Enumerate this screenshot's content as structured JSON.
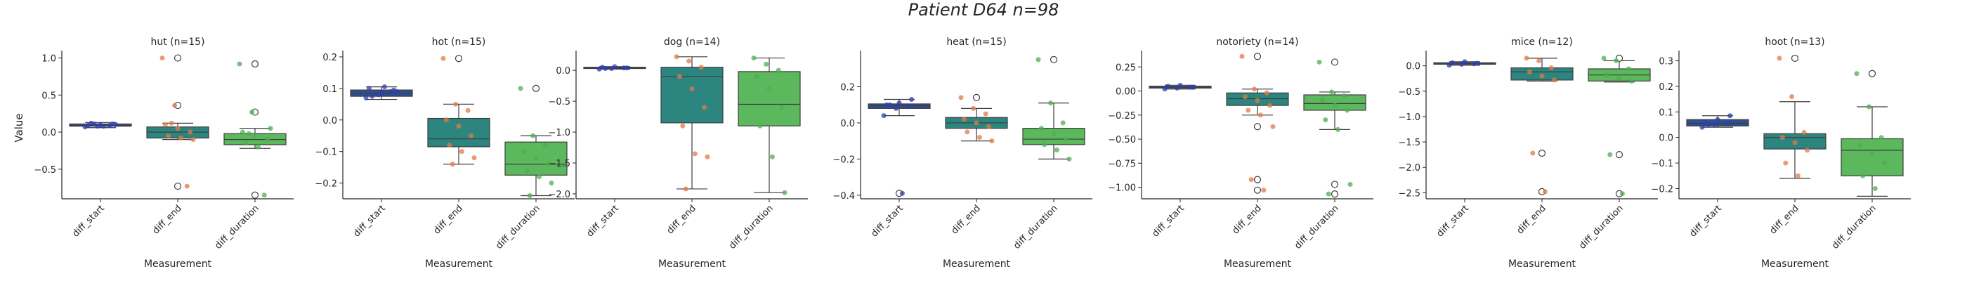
{
  "figure": {
    "title": "Patient D64 n=98",
    "ylabel": "Value",
    "colors": {
      "diff_start": "#2f4f8f",
      "diff_end": "#2c857f",
      "diff_duration": "#5cb85c",
      "dots_start": "#2d3fb0",
      "dots_end": "#e07b45",
      "dots_duration": "#4caf50"
    }
  },
  "chart_data": [
    {
      "type": "box",
      "title": "hut (n=15)",
      "xlabel": "Measurement",
      "categories": [
        "diff_start",
        "diff_end",
        "diff_duration"
      ],
      "ylim": [
        -0.9,
        1.1
      ],
      "yticks": [
        -0.5,
        0.0,
        0.5,
        1.0
      ],
      "ytick_labels": [
        "−0.5",
        "0.0",
        "0.5",
        "1.0"
      ],
      "boxes": [
        {
          "q1": 0.08,
          "median": 0.09,
          "q3": 0.11,
          "whislo": 0.06,
          "whishi": 0.13,
          "fliers": []
        },
        {
          "q1": -0.08,
          "median": 0.0,
          "q3": 0.07,
          "whislo": -0.1,
          "whishi": 0.12,
          "fliers": [
            1.0,
            0.36,
            -0.73
          ]
        },
        {
          "q1": -0.17,
          "median": -0.1,
          "q3": -0.02,
          "whislo": -0.22,
          "whishi": 0.05,
          "fliers": [
            0.92,
            0.27,
            -0.85
          ]
        }
      ],
      "points": [
        [
          0.07,
          0.08,
          0.09,
          0.09,
          0.1,
          0.11,
          0.12,
          0.08,
          0.1,
          0.11
        ],
        [
          1.0,
          0.36,
          -0.73,
          0.1,
          0.05,
          0.0,
          -0.05,
          -0.08,
          -0.1,
          0.12
        ],
        [
          0.92,
          0.27,
          -0.85,
          0.0,
          -0.05,
          -0.1,
          -0.15,
          -0.2,
          0.05,
          -0.02
        ]
      ]
    },
    {
      "type": "box",
      "title": "hot (n=15)",
      "xlabel": "Measurement",
      "categories": [
        "diff_start",
        "diff_end",
        "diff_duration"
      ],
      "ylim": [
        -0.25,
        0.22
      ],
      "yticks": [
        -0.2,
        -0.1,
        0.0,
        0.1,
        0.2
      ],
      "ytick_labels": [
        "−0.2",
        "−0.1",
        "0.0",
        "0.1",
        "0.2"
      ],
      "boxes": [
        {
          "q1": 0.075,
          "median": 0.085,
          "q3": 0.095,
          "whislo": 0.065,
          "whishi": 0.105,
          "fliers": []
        },
        {
          "q1": -0.085,
          "median": -0.06,
          "q3": 0.005,
          "whislo": -0.14,
          "whishi": 0.05,
          "fliers": [
            0.195
          ]
        },
        {
          "q1": -0.175,
          "median": -0.14,
          "q3": -0.07,
          "whislo": -0.24,
          "whishi": -0.05,
          "fliers": [
            0.1
          ]
        }
      ],
      "points": [
        [
          0.07,
          0.08,
          0.09,
          0.1,
          0.085,
          0.095,
          0.075,
          0.105,
          0.09
        ],
        [
          0.195,
          0.05,
          0.03,
          0.0,
          -0.02,
          -0.05,
          -0.08,
          -0.1,
          -0.12,
          -0.14
        ],
        [
          0.1,
          -0.05,
          -0.08,
          -0.1,
          -0.12,
          -0.14,
          -0.16,
          -0.18,
          -0.2,
          -0.24
        ]
      ]
    },
    {
      "type": "box",
      "title": "dog (n=14)",
      "xlabel": "Measurement",
      "categories": [
        "diff_start",
        "diff_end",
        "diff_duration"
      ],
      "ylim": [
        -2.08,
        0.32
      ],
      "yticks": [
        -2.0,
        -1.5,
        -1.0,
        -0.5,
        0.0
      ],
      "ytick_labels": [
        "−2.0",
        "−1.5",
        "−1.0",
        "−0.5",
        "0.0"
      ],
      "boxes": [
        {
          "q1": 0.03,
          "median": 0.04,
          "q3": 0.05,
          "whislo": 0.02,
          "whishi": 0.06,
          "fliers": []
        },
        {
          "q1": -0.85,
          "median": -0.1,
          "q3": 0.05,
          "whislo": -1.92,
          "whishi": 0.22,
          "fliers": []
        },
        {
          "q1": -0.9,
          "median": -0.55,
          "q3": -0.02,
          "whislo": -1.98,
          "whishi": 0.2,
          "fliers": []
        }
      ],
      "points": [
        [
          0.02,
          0.03,
          0.04,
          0.05,
          0.06,
          0.04,
          0.03
        ],
        [
          0.22,
          0.15,
          0.05,
          -0.1,
          -0.3,
          -0.6,
          -0.9,
          -1.35,
          -1.4,
          -1.92
        ],
        [
          0.2,
          0.1,
          0.0,
          -0.1,
          -0.3,
          -0.6,
          -0.9,
          -1.4,
          -1.98
        ]
      ]
    },
    {
      "type": "box",
      "title": "heat (n=15)",
      "xlabel": "Measurement",
      "categories": [
        "diff_start",
        "diff_end",
        "diff_duration"
      ],
      "ylim": [
        -0.42,
        0.4
      ],
      "yticks": [
        -0.4,
        -0.2,
        0.0,
        0.2
      ],
      "ytick_labels": [
        "−0.4",
        "−0.2",
        "0.0",
        "0.2"
      ],
      "boxes": [
        {
          "q1": 0.08,
          "median": 0.095,
          "q3": 0.105,
          "whislo": 0.04,
          "whishi": 0.13,
          "fliers": [
            -0.39
          ]
        },
        {
          "q1": -0.03,
          "median": 0.0,
          "q3": 0.03,
          "whislo": -0.1,
          "whishi": 0.08,
          "fliers": [
            0.14
          ]
        },
        {
          "q1": -0.12,
          "median": -0.09,
          "q3": -0.03,
          "whislo": -0.2,
          "whishi": 0.11,
          "fliers": [
            0.35
          ]
        }
      ],
      "points": [
        [
          0.04,
          0.08,
          0.09,
          0.1,
          0.11,
          0.13,
          0.1,
          -0.39
        ],
        [
          0.14,
          0.08,
          0.05,
          0.02,
          0.0,
          -0.02,
          -0.05,
          -0.08,
          -0.1
        ],
        [
          0.35,
          0.11,
          0.0,
          -0.03,
          -0.06,
          -0.09,
          -0.12,
          -0.15,
          -0.2
        ]
      ]
    },
    {
      "type": "box",
      "title": "notoriety (n=14)",
      "xlabel": "Measurement",
      "categories": [
        "diff_start",
        "diff_end",
        "diff_duration"
      ],
      "ylim": [
        -1.12,
        0.42
      ],
      "yticks": [
        -1.0,
        -0.75,
        -0.5,
        -0.25,
        0.0,
        0.25
      ],
      "ytick_labels": [
        "−1.00",
        "−0.75",
        "−0.50",
        "−0.25",
        "0.00",
        "0.25"
      ],
      "boxes": [
        {
          "q1": 0.03,
          "median": 0.04,
          "q3": 0.05,
          "whislo": 0.02,
          "whishi": 0.06,
          "fliers": []
        },
        {
          "q1": -0.15,
          "median": -0.08,
          "q3": -0.02,
          "whislo": -0.25,
          "whishi": 0.02,
          "fliers": [
            0.36,
            -0.37,
            -0.92,
            -1.03
          ]
        },
        {
          "q1": -0.2,
          "median": -0.13,
          "q3": -0.04,
          "whislo": -0.4,
          "whishi": -0.01,
          "fliers": [
            0.3,
            -0.97,
            -1.07
          ]
        }
      ],
      "points": [
        [
          0.02,
          0.03,
          0.04,
          0.05,
          0.06,
          0.04
        ],
        [
          0.36,
          0.02,
          -0.02,
          -0.06,
          -0.1,
          -0.15,
          -0.2,
          -0.25,
          -0.37,
          -0.92,
          -1.03
        ],
        [
          0.3,
          -0.01,
          -0.05,
          -0.1,
          -0.15,
          -0.2,
          -0.3,
          -0.4,
          -0.97,
          -1.07
        ]
      ]
    },
    {
      "type": "box",
      "title": "mice (n=12)",
      "xlabel": "Measurement",
      "categories": [
        "diff_start",
        "diff_end",
        "diff_duration"
      ],
      "ylim": [
        -2.62,
        0.3
      ],
      "yticks": [
        -2.5,
        -2.0,
        -1.5,
        -1.0,
        -0.5,
        0.0
      ],
      "ytick_labels": [
        "−2.5",
        "−2.0",
        "−1.5",
        "−1.0",
        "−0.5",
        "0.0"
      ],
      "boxes": [
        {
          "q1": 0.03,
          "median": 0.04,
          "q3": 0.06,
          "whislo": 0.01,
          "whishi": 0.08,
          "fliers": []
        },
        {
          "q1": -0.28,
          "median": -0.12,
          "q3": -0.04,
          "whislo": -0.3,
          "whishi": 0.15,
          "fliers": [
            -1.72,
            -2.48
          ]
        },
        {
          "q1": -0.3,
          "median": -0.18,
          "q3": -0.06,
          "whislo": -0.32,
          "whishi": 0.1,
          "fliers": [
            0.15,
            -1.75,
            -2.52
          ]
        }
      ],
      "points": [
        [
          0.01,
          0.03,
          0.04,
          0.06,
          0.08,
          0.05
        ],
        [
          0.15,
          0.1,
          -0.04,
          -0.12,
          -0.2,
          -0.28,
          -1.72,
          -2.48
        ],
        [
          0.15,
          0.1,
          -0.06,
          -0.18,
          -0.25,
          -0.3,
          -1.75,
          -2.52
        ]
      ]
    },
    {
      "type": "box",
      "title": "hoot (n=13)",
      "xlabel": "Measurement",
      "categories": [
        "diff_start",
        "diff_end",
        "diff_duration"
      ],
      "ylim": [
        -0.24,
        0.34
      ],
      "yticks": [
        -0.2,
        -0.1,
        0.0,
        0.1,
        0.2,
        0.3
      ],
      "ytick_labels": [
        "−0.2",
        "−0.1",
        "0.0",
        "0.1",
        "0.2",
        "0.3"
      ],
      "boxes": [
        {
          "q1": 0.045,
          "median": 0.055,
          "q3": 0.07,
          "whislo": 0.04,
          "whishi": 0.085,
          "fliers": []
        },
        {
          "q1": -0.045,
          "median": 0.0,
          "q3": 0.015,
          "whislo": -0.16,
          "whishi": 0.14,
          "fliers": [
            0.31
          ]
        },
        {
          "q1": -0.15,
          "median": -0.05,
          "q3": -0.005,
          "whislo": -0.23,
          "whishi": 0.12,
          "fliers": [
            0.25
          ]
        }
      ],
      "points": [
        [
          0.04,
          0.05,
          0.055,
          0.06,
          0.07,
          0.085,
          0.05
        ],
        [
          0.31,
          0.16,
          0.02,
          0.0,
          -0.02,
          -0.05,
          -0.1,
          -0.15
        ],
        [
          0.25,
          0.12,
          0.0,
          -0.03,
          -0.06,
          -0.1,
          -0.15,
          -0.2
        ]
      ]
    }
  ]
}
